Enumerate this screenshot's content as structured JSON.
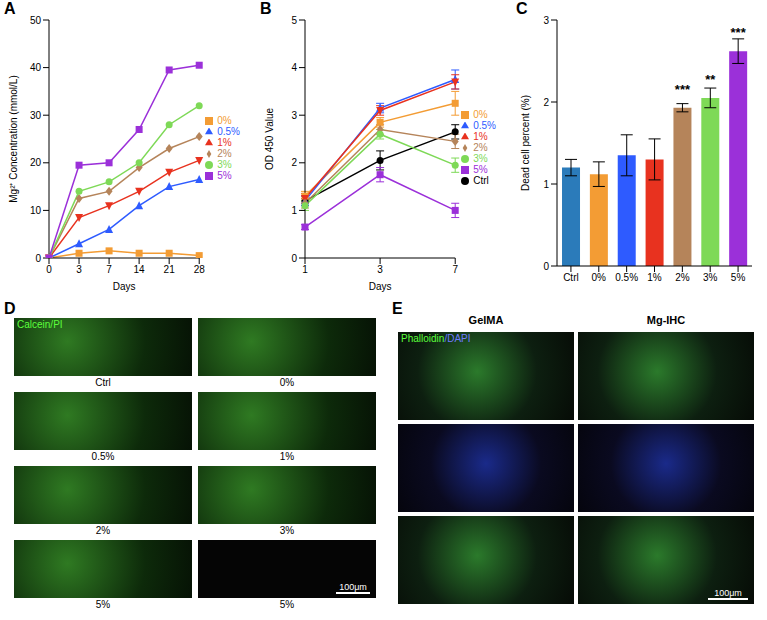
{
  "chart_data": [
    {
      "label": "A",
      "type": "line",
      "x_label": "Days",
      "y_label": "Mg²⁺ Concentration (mmol/L)",
      "categories": [
        "0",
        "3",
        "7",
        "14",
        "21",
        "28"
      ],
      "ylim": [
        0,
        50
      ],
      "yticks": [
        0,
        10,
        20,
        30,
        40,
        50
      ],
      "grid": false,
      "legend": "right",
      "series": [
        {
          "name": "0%",
          "color": "#f39c34",
          "marker": "square",
          "values": [
            0,
            1,
            1.5,
            1,
            1,
            0.5
          ]
        },
        {
          "name": "0.5%",
          "color": "#2e5bff",
          "marker": "triangle",
          "values": [
            0,
            3,
            6,
            11,
            15,
            16.5
          ]
        },
        {
          "name": "1%",
          "color": "#e8321f",
          "marker": "triangle-down",
          "values": [
            0,
            8.5,
            11,
            14,
            18,
            20.5
          ]
        },
        {
          "name": "2%",
          "color": "#b5845a",
          "marker": "diamond",
          "values": [
            0,
            12.5,
            14,
            19,
            23,
            25.5
          ]
        },
        {
          "name": "3%",
          "color": "#7ed957",
          "marker": "circle",
          "values": [
            0,
            14,
            16,
            20,
            28,
            32
          ]
        },
        {
          "name": "5%",
          "color": "#9b30d9",
          "marker": "square",
          "values": [
            0,
            19.5,
            20,
            27,
            39.5,
            40.5
          ]
        }
      ]
    },
    {
      "label": "B",
      "type": "line",
      "x_label": "Days",
      "y_label": "OD 450 Value",
      "categories": [
        "1",
        "3",
        "7"
      ],
      "ylim": [
        0,
        5
      ],
      "yticks": [
        0,
        1,
        2,
        3,
        4,
        5
      ],
      "grid": false,
      "legend": "right",
      "series": [
        {
          "name": "Ctrl",
          "color": "#000000",
          "marker": "circle",
          "values": [
            1.2,
            2.05,
            2.65
          ],
          "errors": [
            0.1,
            0.2,
            0.15
          ]
        },
        {
          "name": "0%",
          "color": "#f39c34",
          "marker": "square",
          "values": [
            1.3,
            2.85,
            3.25
          ],
          "errors": [
            0.1,
            0.1,
            0.25
          ]
        },
        {
          "name": "0.5%",
          "color": "#2e5bff",
          "marker": "triangle",
          "values": [
            1.2,
            3.15,
            3.75
          ],
          "errors": [
            0.1,
            0.1,
            0.2
          ]
        },
        {
          "name": "1%",
          "color": "#e8321f",
          "marker": "triangle-down",
          "values": [
            1.25,
            3.1,
            3.7
          ],
          "errors": [
            0.1,
            0.1,
            0.15
          ]
        },
        {
          "name": "2%",
          "color": "#b5845a",
          "marker": "diamond",
          "values": [
            1.15,
            2.7,
            2.45
          ],
          "errors": [
            0.1,
            0.1,
            0.15
          ]
        },
        {
          "name": "3%",
          "color": "#7ed957",
          "marker": "circle",
          "values": [
            1.1,
            2.6,
            1.95
          ],
          "errors": [
            0.1,
            0.1,
            0.15
          ]
        },
        {
          "name": "5%",
          "color": "#9b30d9",
          "marker": "square",
          "values": [
            0.65,
            1.75,
            1.0
          ],
          "errors": [
            0.05,
            0.15,
            0.15
          ]
        }
      ]
    },
    {
      "label": "C",
      "type": "bar",
      "y_label": "Dead cell percent (%)",
      "categories": [
        "Ctrl",
        "0%",
        "0.5%",
        "1%",
        "2%",
        "3%",
        "5%"
      ],
      "values": [
        1.2,
        1.12,
        1.35,
        1.3,
        1.93,
        2.05,
        2.62
      ],
      "errors": [
        0.1,
        0.15,
        0.25,
        0.25,
        0.05,
        0.12,
        0.15
      ],
      "annotations": [
        null,
        null,
        null,
        null,
        "***",
        "**",
        "***"
      ],
      "colors": [
        "#2b7bba",
        "#f39c34",
        "#2e5bff",
        "#e8321f",
        "#b5845a",
        "#7ed957",
        "#9b30d9"
      ],
      "ylim": [
        0,
        3
      ],
      "yticks": [
        0,
        1,
        2,
        3
      ],
      "grid": false
    }
  ],
  "images": [
    {
      "label": "D",
      "stain": "Calcein/PI",
      "panels": [
        "Ctrl",
        "0%",
        "0.5%",
        "1%",
        "2%",
        "3%",
        "5%",
        "5%"
      ],
      "scale_bar": "100μm"
    },
    {
      "label": "E",
      "stain": "Phalloidin/DAPI",
      "columns": [
        "GelMA",
        "Mg-IHC"
      ],
      "scale_bar": "100μm"
    }
  ]
}
